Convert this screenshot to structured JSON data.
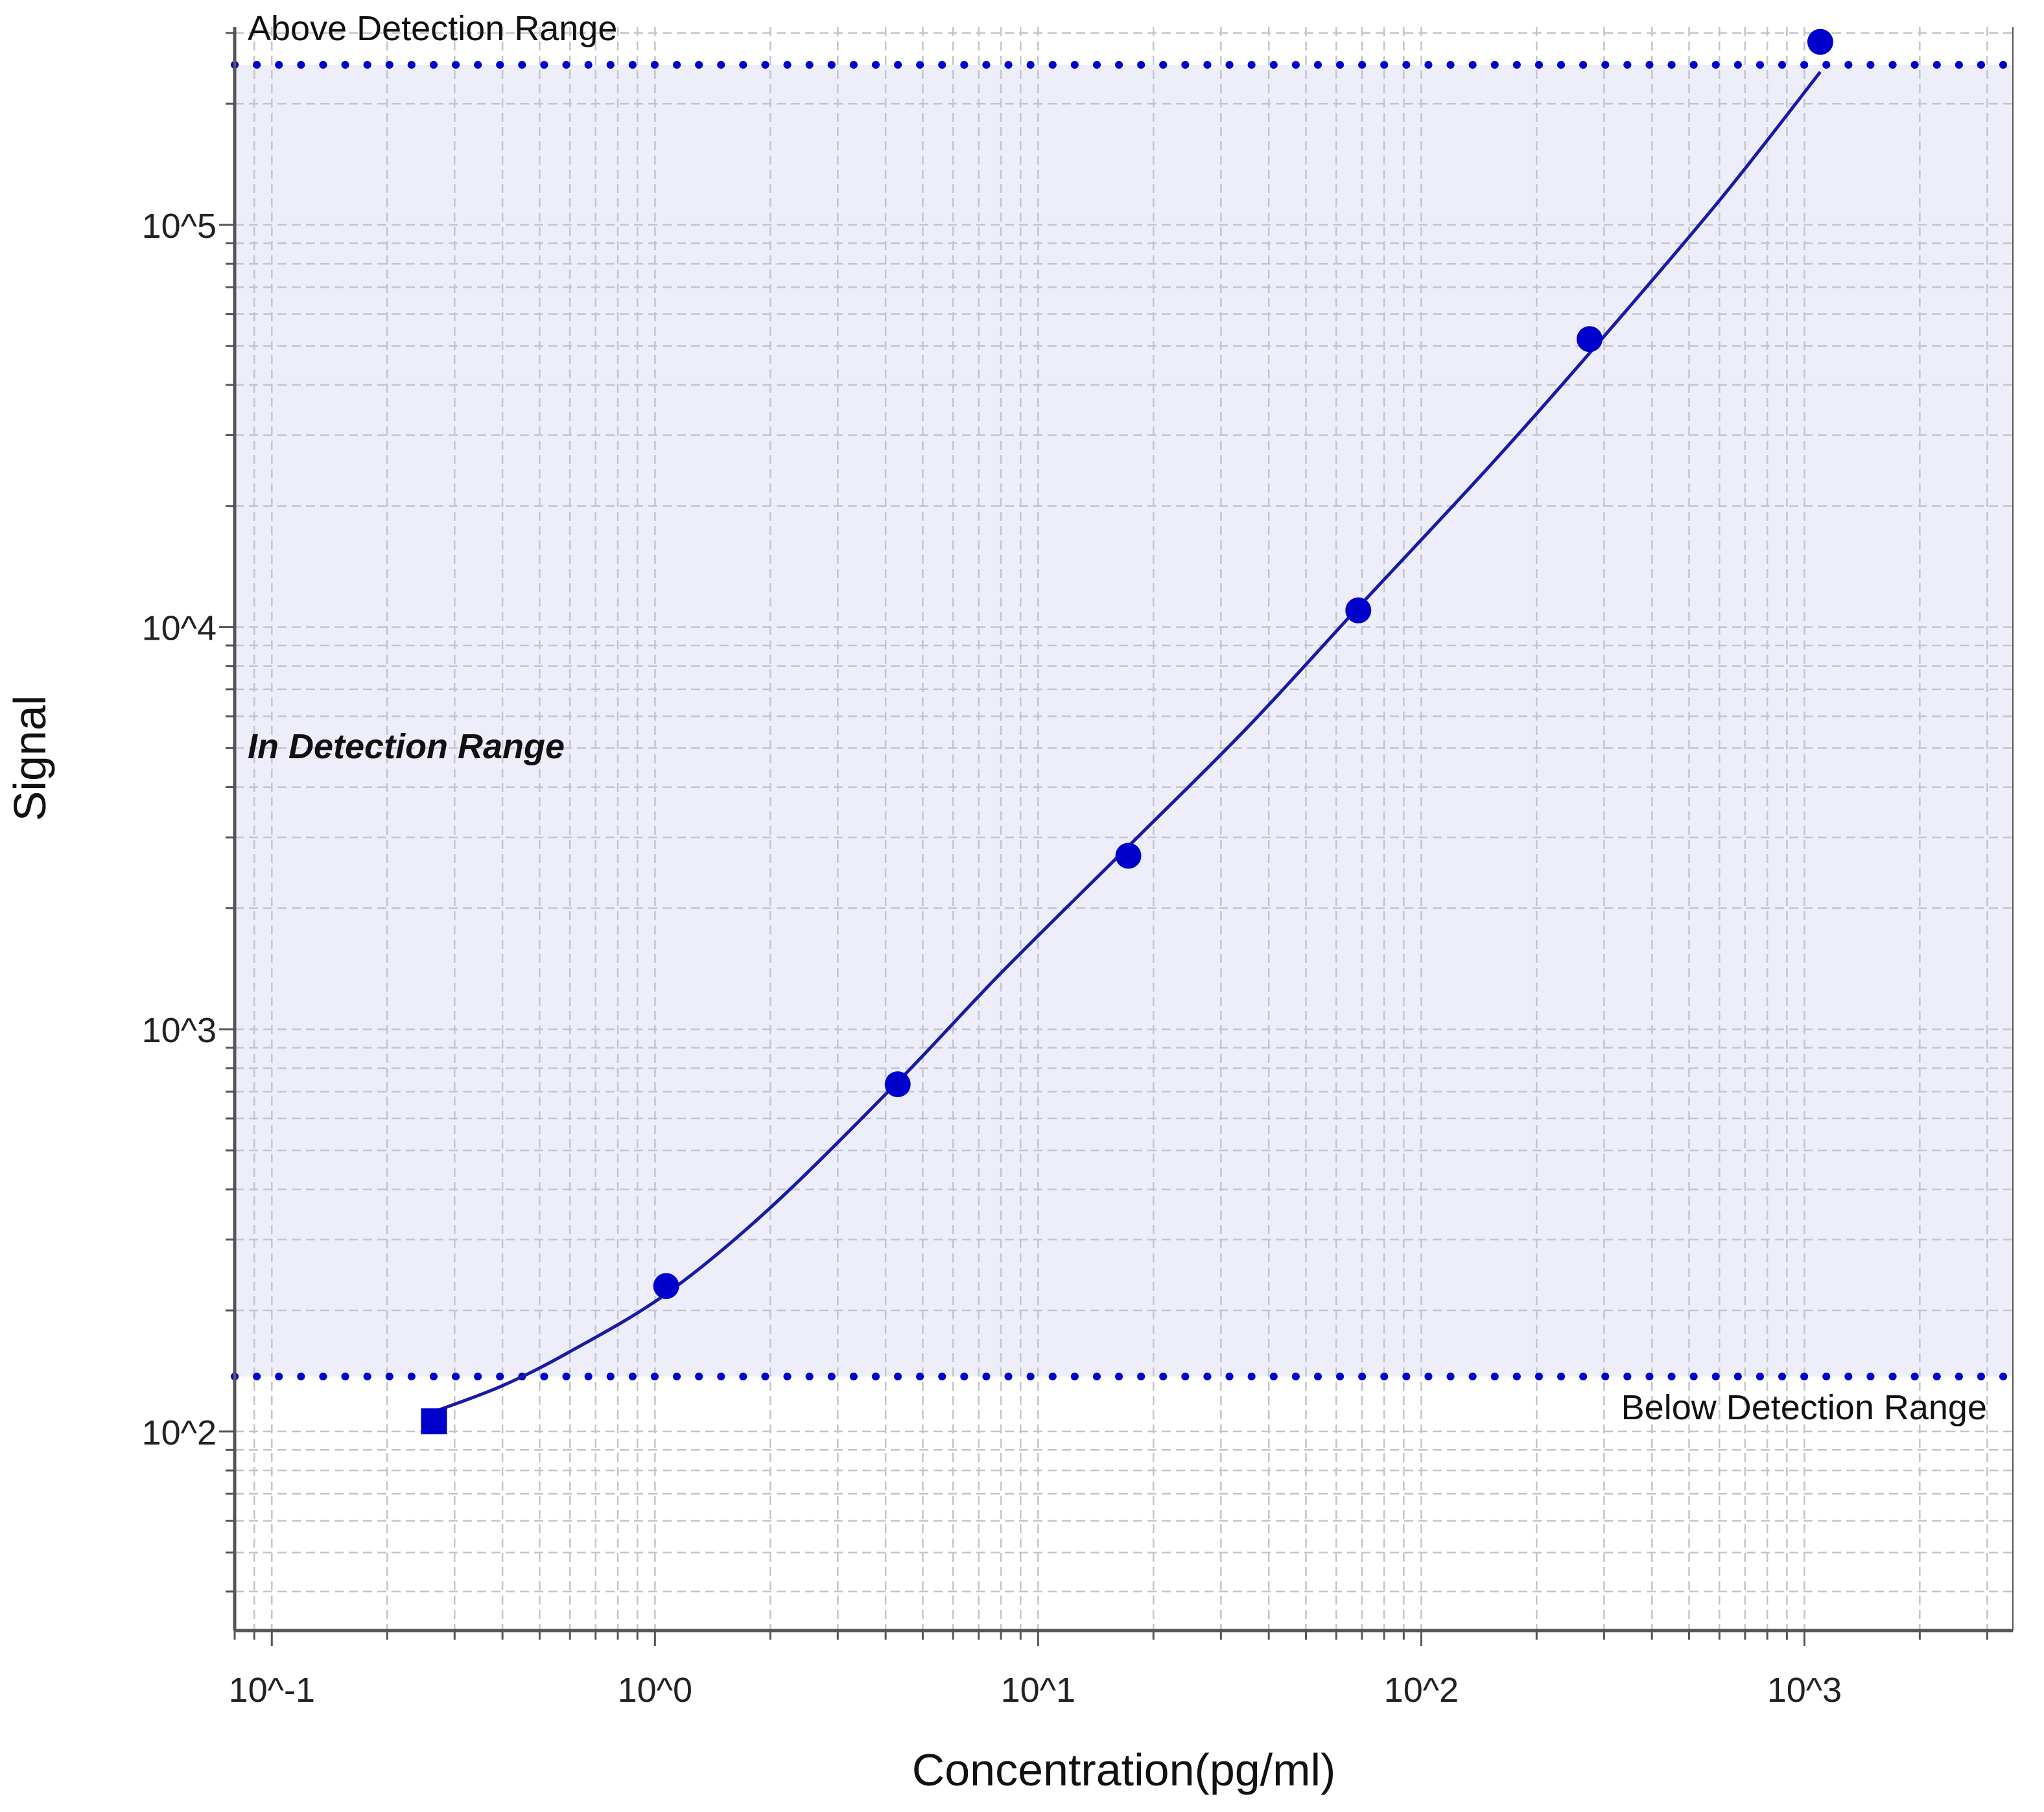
{
  "chart_data": {
    "type": "scatter",
    "xlabel": "Concentration(pg/ml)",
    "ylabel": "Signal",
    "xscale": "log",
    "yscale": "log",
    "xlim": [
      0.08,
      3500
    ],
    "ylim": [
      32,
      310000
    ],
    "x_ticks": [
      {
        "value": 0.1,
        "label": "10^-1"
      },
      {
        "value": 1,
        "label": "10^0"
      },
      {
        "value": 10,
        "label": "10^1"
      },
      {
        "value": 100,
        "label": "10^2"
      },
      {
        "value": 1000,
        "label": "10^3"
      }
    ],
    "y_ticks": [
      {
        "value": 100,
        "label": "10^2"
      },
      {
        "value": 1000,
        "label": "10^3"
      },
      {
        "value": 10000,
        "label": "10^4"
      },
      {
        "value": 100000,
        "label": "10^5"
      }
    ],
    "grid": true,
    "detection_range": {
      "upper": 250000,
      "lower": 137,
      "above_label": "Above Detection Range",
      "in_label": "In Detection Range",
      "below_label": "Below Detection Range"
    },
    "series": [
      {
        "marker": "circle",
        "color": "#0000cc",
        "points": [
          {
            "x": 1.07,
            "y": 230
          },
          {
            "x": 4.3,
            "y": 730
          },
          {
            "x": 17.2,
            "y": 2700
          },
          {
            "x": 68.5,
            "y": 11000
          },
          {
            "x": 275,
            "y": 52000
          },
          {
            "x": 1100,
            "y": 285000
          }
        ]
      },
      {
        "marker": "square",
        "color": "#0000cc",
        "points": [
          {
            "x": 0.265,
            "y": 106
          }
        ]
      }
    ],
    "fit_curve": {
      "color": "#1a1aa6",
      "points": [
        {
          "x": 0.265,
          "y": 112
        },
        {
          "x": 0.4,
          "y": 130
        },
        {
          "x": 0.6,
          "y": 158
        },
        {
          "x": 1.07,
          "y": 220
        },
        {
          "x": 2,
          "y": 360
        },
        {
          "x": 4.3,
          "y": 740
        },
        {
          "x": 8,
          "y": 1380
        },
        {
          "x": 17.2,
          "y": 2850
        },
        {
          "x": 35,
          "y": 5600
        },
        {
          "x": 68.5,
          "y": 11200
        },
        {
          "x": 150,
          "y": 25000
        },
        {
          "x": 275,
          "y": 48000
        },
        {
          "x": 600,
          "y": 115000
        },
        {
          "x": 1100,
          "y": 240000
        }
      ]
    }
  },
  "colors": {
    "in_range_fill": "#eeeefb",
    "grid": "#c4c4cc",
    "axis": "#555555",
    "threshold_line": "#0000cc"
  }
}
